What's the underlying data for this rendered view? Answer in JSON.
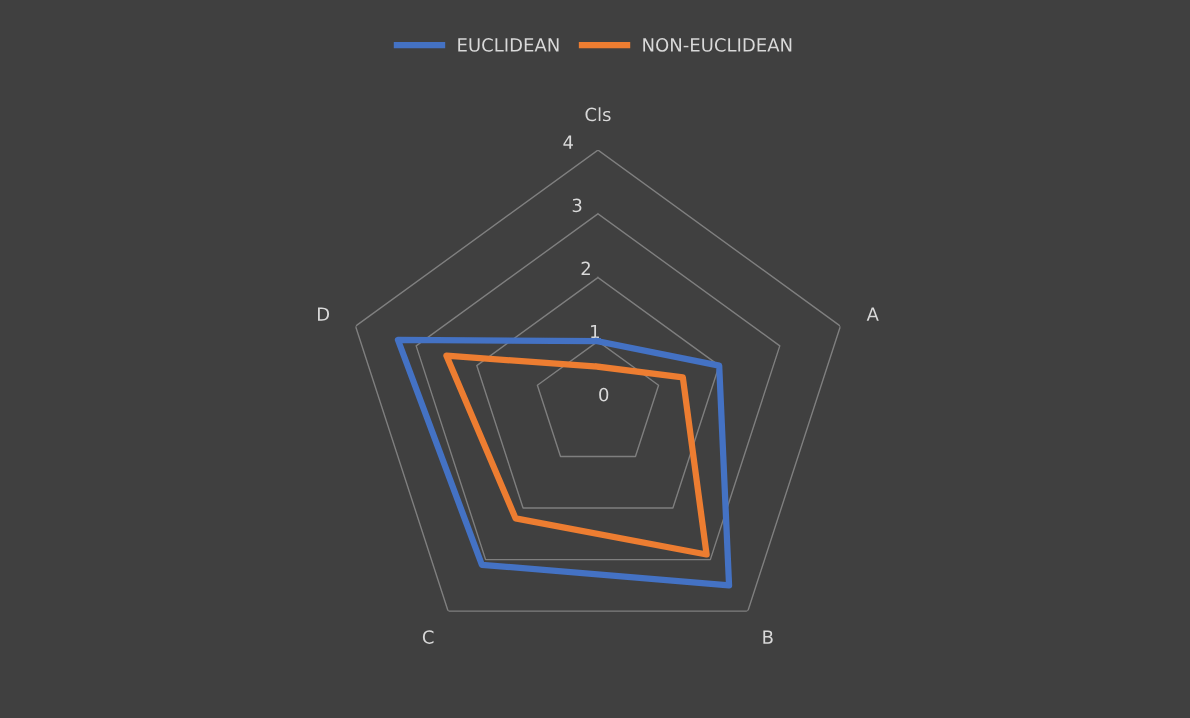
{
  "chart_data": {
    "type": "radar",
    "categories": [
      "Cls",
      "A",
      "B",
      "C",
      "D"
    ],
    "series": [
      {
        "name": "EUCLIDEAN",
        "color": "#4472c4",
        "values": [
          1,
          2,
          3.5,
          3.1,
          3.3
        ]
      },
      {
        "name": "NON-EUCLIDEAN",
        "color": "#ed7d31",
        "values": [
          0.6,
          1.4,
          2.9,
          2.2,
          2.5
        ]
      }
    ],
    "ylim": [
      0,
      4
    ],
    "yticks": [
      0,
      1,
      2,
      3,
      4
    ],
    "grid": true,
    "legend": "top",
    "marker": "none",
    "line_style": "solid"
  }
}
